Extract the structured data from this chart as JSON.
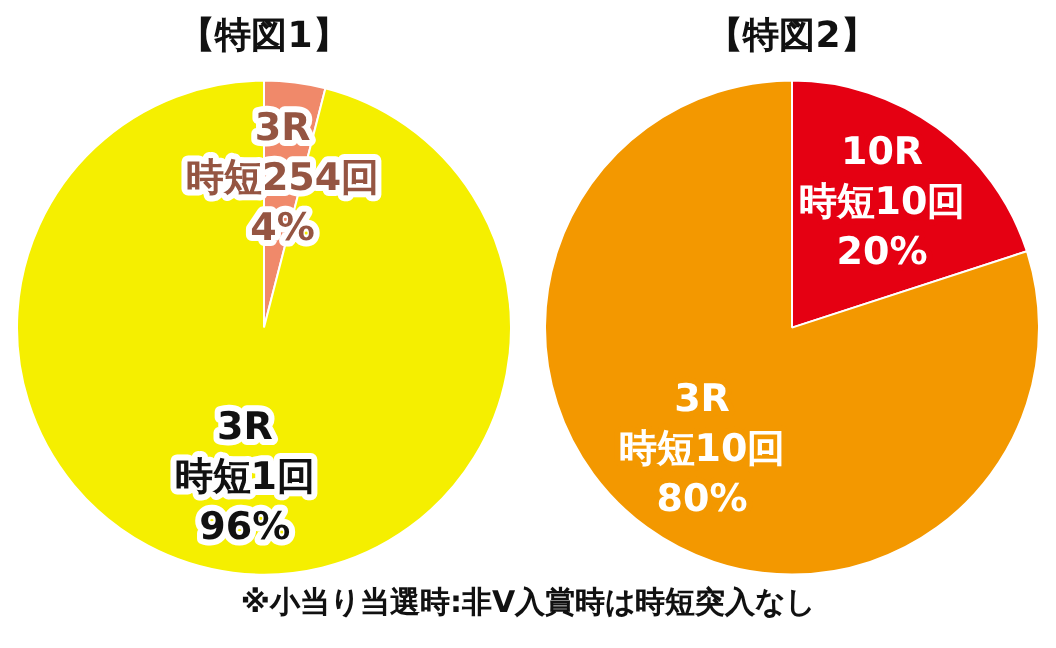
{
  "chart_data": [
    {
      "type": "pie",
      "title": "【特図1】",
      "categories": [
        "3R\n時短254回",
        "3R\n時短1回"
      ],
      "values": [
        4,
        96
      ],
      "value_labels": [
        "4%",
        "96%"
      ],
      "colors": [
        "#f0896a",
        "#f5ef00"
      ],
      "legend": false
    },
    {
      "type": "pie",
      "title": "【特図2】",
      "categories": [
        "10R\n時短10回",
        "3R\n時短10回"
      ],
      "values": [
        20,
        80
      ],
      "value_labels": [
        "20%",
        "80%"
      ],
      "colors": [
        "#e50012",
        "#f39800"
      ],
      "legend": false,
      "annotations": [
        "※小当り当選時:非V入賞時は時短突入なし"
      ]
    }
  ]
}
